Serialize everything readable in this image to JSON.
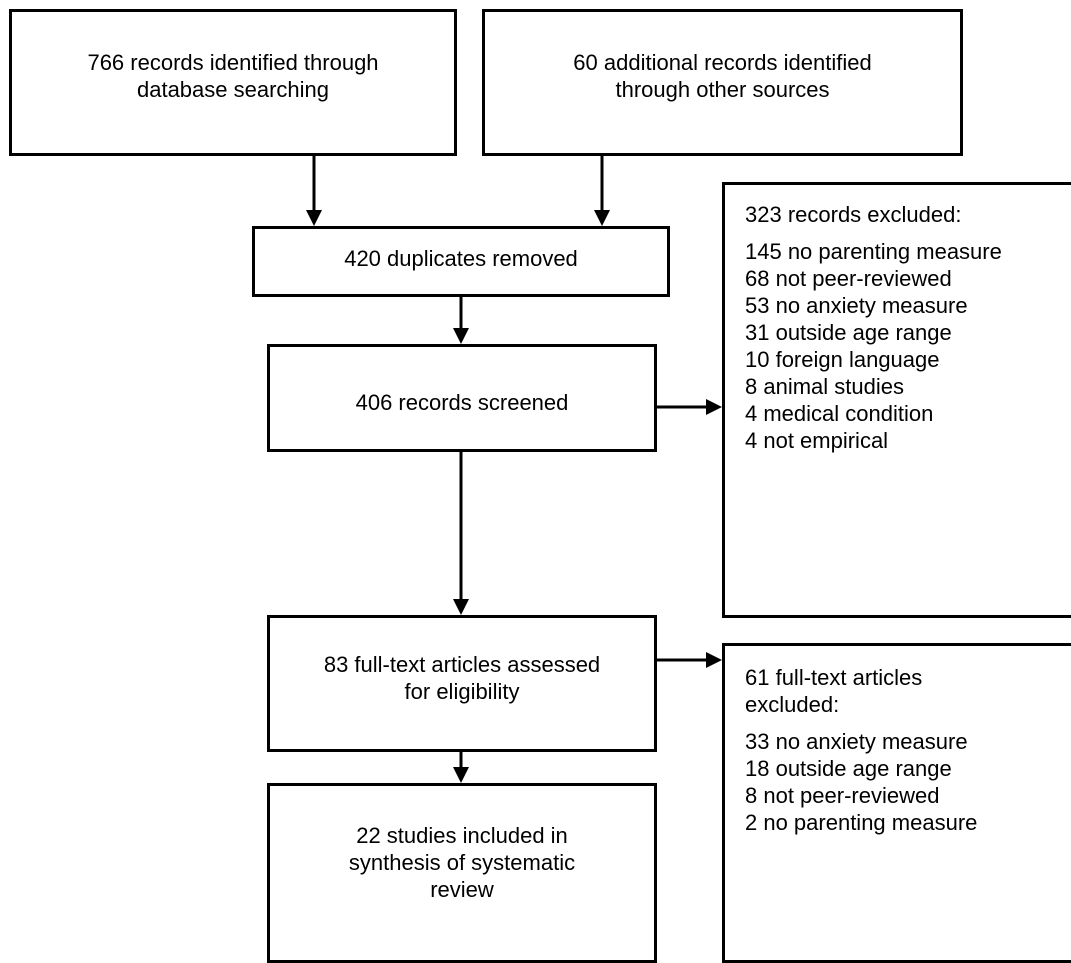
{
  "boxes": {
    "database_search": {
      "line1": "766 records identified through",
      "line2": "database searching"
    },
    "other_sources": {
      "line1": "60 additional records identified",
      "line2": "through other sources"
    },
    "duplicates": {
      "text": "420 duplicates removed"
    },
    "screened": {
      "text": "406 records screened"
    },
    "full_text": {
      "line1": "83 full-text articles assessed",
      "line2": "for eligibility"
    },
    "included": {
      "line1": "22 studies included in",
      "line2": "synthesis of systematic",
      "line3": "review"
    }
  },
  "exclusion_records": {
    "heading": "323 records excluded:",
    "items": [
      "145 no parenting measure",
      "68 not peer-reviewed",
      "53 no anxiety measure",
      "31 outside age range",
      "10 foreign language",
      "8 animal studies",
      "4 medical condition",
      "4 not empirical"
    ]
  },
  "exclusion_fulltext": {
    "heading_line1": "61 full-text articles",
    "heading_line2": "excluded:",
    "items": [
      "33 no anxiety measure",
      "18 outside age range",
      "8 not peer-reviewed",
      "2 no parenting measure"
    ]
  }
}
